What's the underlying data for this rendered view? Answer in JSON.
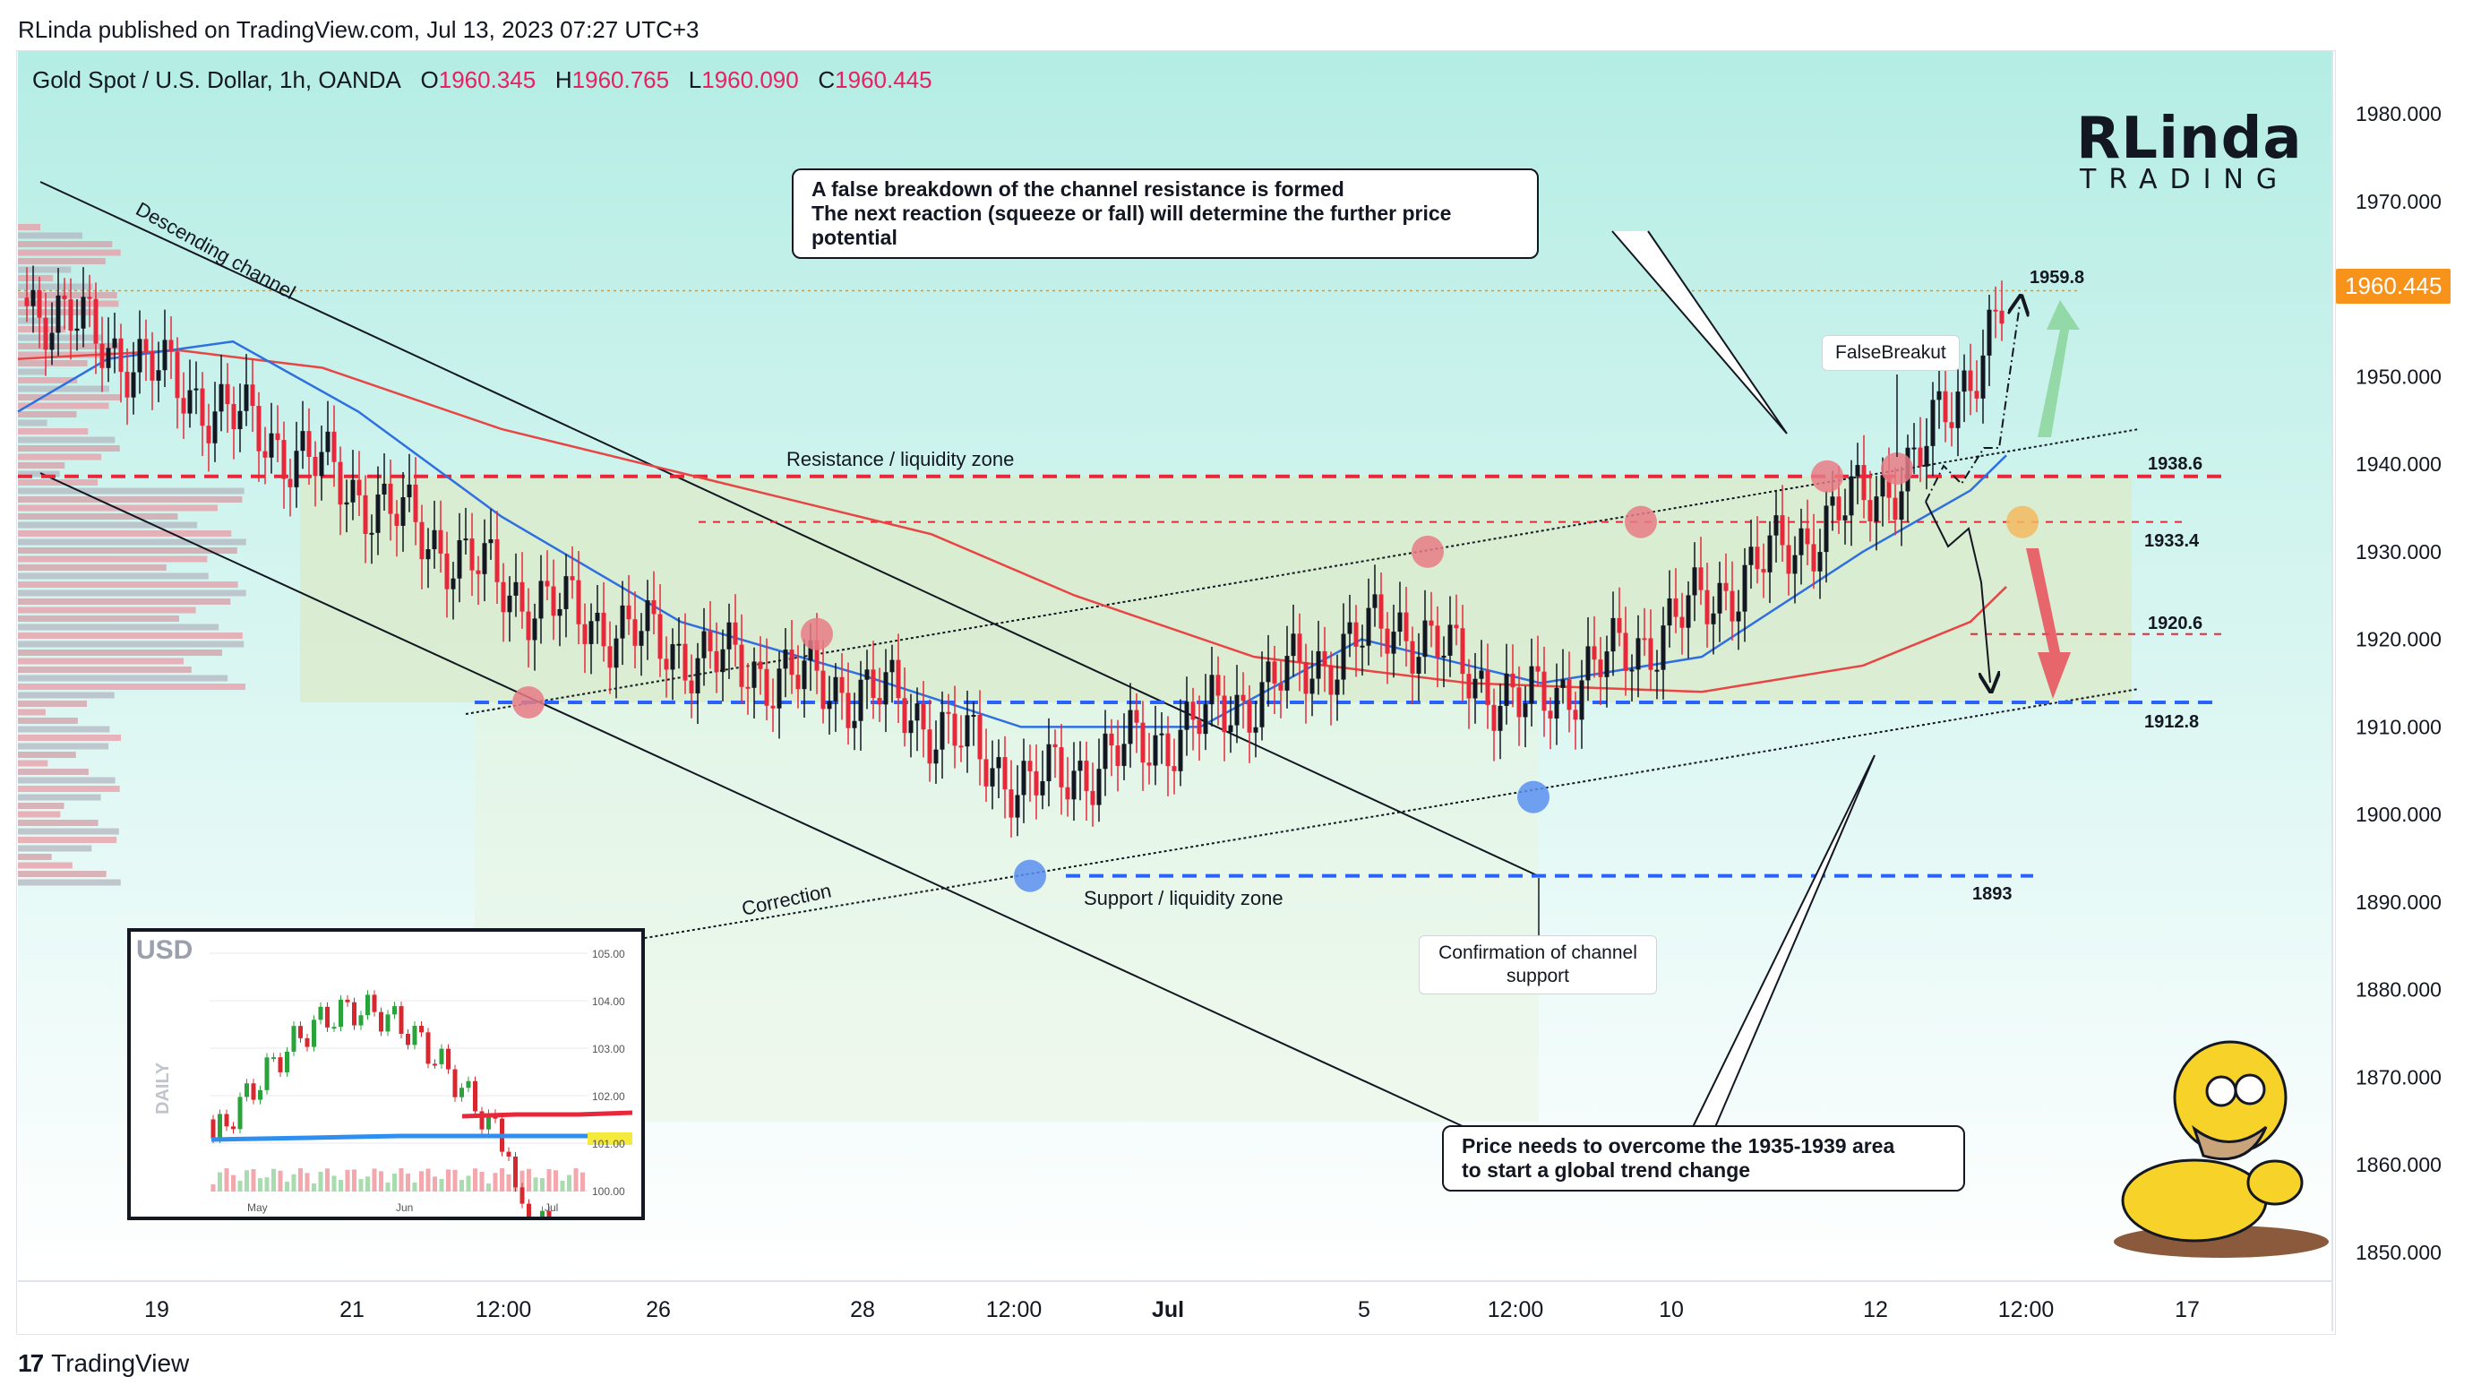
{
  "header": {
    "published_by": "RLinda published on TradingView.com, Jul 13, 2023 07:27 UTC+3"
  },
  "legend": {
    "symbol": "Gold Spot / U.S. Dollar, 1h, OANDA",
    "open_label": "O",
    "open": "1960.345",
    "high_label": "H",
    "high": "1960.765",
    "low_label": "L",
    "low": "1960.090",
    "close_label": "C",
    "close": "1960.445"
  },
  "brand": {
    "name_big": "RLinda",
    "name_sub": "TRADING"
  },
  "footer": {
    "platform": "TradingView"
  },
  "price_axis": {
    "current_price": "1960.445",
    "labels": [
      "1980.000",
      "1970.000",
      "1960.000",
      "1950.000",
      "1940.000",
      "1930.000",
      "1920.000",
      "1910.000",
      "1900.000",
      "1890.000",
      "1880.000",
      "1870.000",
      "1860.000",
      "1850.000"
    ]
  },
  "time_axis": {
    "labels": [
      "19",
      "21",
      "12:00",
      "26",
      "28",
      "12:00",
      "Jul",
      "5",
      "12:00",
      "10",
      "12",
      "12:00",
      "17"
    ]
  },
  "annotations": {
    "false_breakdown_line1": "A false breakdown of the channel resistance is formed",
    "false_breakdown_line2": "The next reaction (squeeze or fall) will determine the further price potential",
    "price_needs_line1": "Price needs to overcome the 1935-1939 area",
    "price_needs_line2": "to start a global trend change",
    "confirmation_line1": "Confirmation of channel",
    "confirmation_line2": "support",
    "false_breakout": "FalseBreakut",
    "descending_channel": "Descending channel",
    "correction": "Correction",
    "resistance_zone": "Resistance / liquidity zone",
    "support_zone": "Support / liquidity zone"
  },
  "levels": {
    "l1959": "1959.8",
    "l1938": "1938.6",
    "l1933": "1933.4",
    "l1920": "1920.6",
    "l1912": "1912.8",
    "l1893": "1893"
  },
  "inset": {
    "title": "USD",
    "side_label": "DAILY",
    "y_labels": [
      "105.00",
      "104.00",
      "103.00",
      "102.00",
      "101.00",
      "100.00"
    ],
    "x_labels": [
      "May",
      "Jun",
      "Jul"
    ]
  },
  "colors": {
    "resistance": "#e8283a",
    "support": "#2962ff",
    "ma_slow": "#e84545",
    "ma_fast": "#2f6fe0",
    "zone": "#dbe9c4",
    "price_tag": "#f7931a",
    "bull_arrow": "#7dcf8a",
    "bear_arrow": "#e84d5b"
  },
  "chart_data": {
    "type": "line",
    "title": "Gold Spot / U.S. Dollar, 1h, OANDA",
    "xlabel": "",
    "ylabel": "",
    "ylim": [
      1845,
      1990
    ],
    "x": [
      "19",
      "21",
      "12:00",
      "26",
      "28",
      "12:00",
      "Jul",
      "5",
      "12:00",
      "10",
      "12",
      "12:00"
    ],
    "series": [
      {
        "values": [
          1959,
          1940,
          1925,
          1918,
          1913,
          1903,
          1910,
          1922,
          1912,
          1920,
          1940,
          1960
        ]
      }
    ],
    "horizontal_levels": [
      1959.8,
      1938.6,
      1933.4,
      1920.6,
      1912.8,
      1893
    ],
    "ohlc_last": {
      "open": 1960.345,
      "high": 1960.765,
      "low": 1960.09,
      "close": 1960.445
    }
  }
}
